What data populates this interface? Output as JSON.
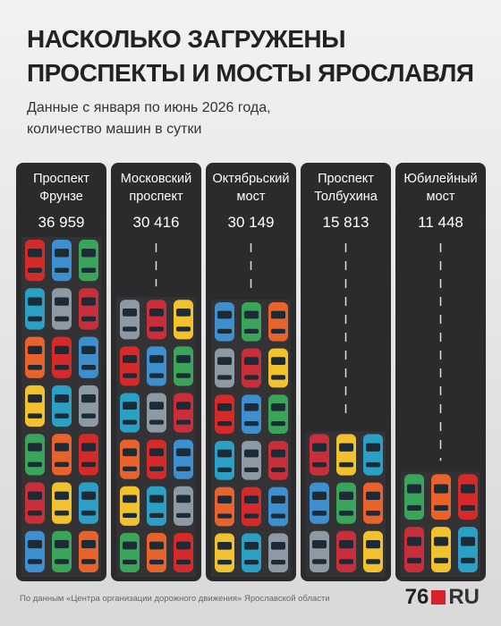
{
  "header": {
    "title": [
      "НАСКОЛЬКО ЗАГРУЖЕНЫ",
      "ПРОСПЕКТЫ И МОСТЫ ЯРОСЛАВЛЯ"
    ],
    "subtitle": [
      "Данные с января по июнь 2026 года,",
      "количество машин в сутки"
    ]
  },
  "chart_data": {
    "type": "bar",
    "categories": [
      "Проспект Фрунзе",
      "Московский проспект",
      "Октябрьский мост",
      "Проспект Толбухина",
      "Юбилейный мост"
    ],
    "values": [
      36959,
      30416,
      30149,
      15813,
      11448
    ],
    "value_labels": [
      "36 959",
      "30 416",
      "30 149",
      "15 813",
      "11 448"
    ]
  },
  "footer": {
    "source": "По данным «Центра организации дорожного движения» Ярославской области",
    "logo_number": "76",
    "logo_domain": "RU"
  }
}
